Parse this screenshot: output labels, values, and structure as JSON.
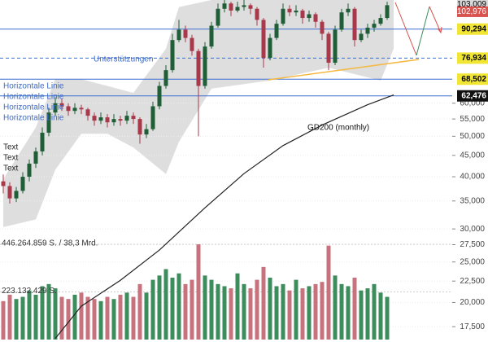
{
  "chart_data": {
    "type": "candlestick",
    "scale": "log",
    "ylim": [
      16300,
      106000
    ],
    "yticks": [
      {
        "value": 17500,
        "label": "17,500"
      },
      {
        "value": 20000,
        "label": "20,000"
      },
      {
        "value": 22500,
        "label": "22,500"
      },
      {
        "value": 25000,
        "label": "25,000"
      },
      {
        "value": 27500,
        "label": "27,500"
      },
      {
        "value": 30000,
        "label": "30,000"
      },
      {
        "value": 35000,
        "label": "35,000"
      },
      {
        "value": 40000,
        "label": "40,000"
      },
      {
        "value": 45000,
        "label": "45,000"
      },
      {
        "value": 50000,
        "label": "50,000"
      },
      {
        "value": 55000,
        "label": "55,000"
      },
      {
        "value": 60000,
        "label": "60,000"
      }
    ],
    "up_color": "#1f5e37",
    "down_color": "#a8384a",
    "candles": [
      [
        39000,
        40500,
        36500,
        38000
      ],
      [
        38000,
        38800,
        34500,
        35500
      ],
      [
        35500,
        37800,
        34800,
        37000
      ],
      [
        37000,
        41000,
        36500,
        40000
      ],
      [
        40000,
        44000,
        39000,
        43000
      ],
      [
        43000,
        47000,
        42000,
        46000
      ],
      [
        46000,
        52500,
        45000,
        51000
      ],
      [
        51000,
        58500,
        50000,
        57000
      ],
      [
        57000,
        62000,
        56000,
        60000
      ],
      [
        60000,
        61500,
        57500,
        59000
      ],
      [
        59000,
        60000,
        56000,
        57500
      ],
      [
        57500,
        60000,
        56500,
        58500
      ],
      [
        58500,
        59500,
        56500,
        58000
      ],
      [
        58000,
        58500,
        54500,
        56000
      ],
      [
        56000,
        57000,
        53000,
        54500
      ],
      [
        54500,
        57000,
        53500,
        55500
      ],
      [
        55500,
        56500,
        52500,
        54000
      ],
      [
        54000,
        56500,
        53000,
        55000
      ],
      [
        55000,
        56000,
        53000,
        54500
      ],
      [
        54500,
        57500,
        53500,
        56000
      ],
      [
        56000,
        57000,
        53500,
        55000
      ],
      [
        55000,
        55500,
        48000,
        50500
      ],
      [
        50500,
        53500,
        49500,
        52000
      ],
      [
        52000,
        60500,
        51500,
        59000
      ],
      [
        59000,
        67500,
        58000,
        66000
      ],
      [
        66000,
        74000,
        65000,
        72000
      ],
      [
        72000,
        88000,
        71000,
        85000
      ],
      [
        85000,
        95000,
        84000,
        90000
      ],
      [
        90000,
        92000,
        84000,
        86000
      ],
      [
        86000,
        87500,
        78000,
        80000
      ],
      [
        80000,
        81000,
        50000,
        66000
      ],
      [
        66000,
        84000,
        65000,
        82000
      ],
      [
        82000,
        94000,
        81000,
        92000
      ],
      [
        92000,
        104000,
        91000,
        101000
      ],
      [
        101000,
        106000,
        99000,
        104000
      ],
      [
        104000,
        105000,
        97000,
        100000
      ],
      [
        100000,
        105000,
        99000,
        102000
      ],
      [
        102000,
        106000,
        100000,
        103000
      ],
      [
        103000,
        104000,
        98000,
        101000
      ],
      [
        101000,
        102000,
        92000,
        95000
      ],
      [
        95000,
        96000,
        73000,
        77000
      ],
      [
        77000,
        88000,
        76000,
        86000
      ],
      [
        86000,
        95000,
        85000,
        93000
      ],
      [
        93000,
        104000,
        92000,
        101000
      ],
      [
        101000,
        103000,
        97000,
        99000
      ],
      [
        99000,
        103000,
        97000,
        100000
      ],
      [
        100000,
        101000,
        93000,
        96000
      ],
      [
        96000,
        100000,
        94000,
        98000
      ],
      [
        98000,
        99000,
        91000,
        94000
      ],
      [
        94000,
        95000,
        85000,
        88000
      ],
      [
        88000,
        89000,
        72000,
        75000
      ],
      [
        75000,
        92000,
        74000,
        90000
      ],
      [
        90000,
        101000,
        89000,
        99000
      ],
      [
        99000,
        104000,
        97000,
        101000
      ],
      [
        101000,
        102000,
        82000,
        85000
      ],
      [
        85000,
        90000,
        84000,
        88000
      ],
      [
        88000,
        93000,
        86000,
        91000
      ],
      [
        91000,
        95000,
        89000,
        93000
      ],
      [
        93000,
        98000,
        92000,
        96000
      ],
      [
        96000,
        105000,
        95000,
        103000
      ]
    ],
    "volume": {
      "ylim": [
        0,
        446264859
      ],
      "ticks": [
        {
          "value": 446264859,
          "label": "446.264.859 S. / 38,3 Mrd."
        },
        {
          "value": 223132429,
          "label": "223.132.429 S."
        }
      ],
      "up_color": "#3d8c5c",
      "down_color": "#c8727e",
      "values": [
        180000000,
        210000000,
        190000000,
        200000000,
        230000000,
        210000000,
        250000000,
        260000000,
        240000000,
        200000000,
        190000000,
        210000000,
        220000000,
        200000000,
        190000000,
        180000000,
        200000000,
        190000000,
        210000000,
        220000000,
        200000000,
        260000000,
        220000000,
        280000000,
        300000000,
        330000000,
        290000000,
        310000000,
        260000000,
        280000000,
        446000000,
        300000000,
        280000000,
        260000000,
        250000000,
        240000000,
        310000000,
        260000000,
        240000000,
        280000000,
        340000000,
        290000000,
        250000000,
        260000000,
        230000000,
        280000000,
        240000000,
        250000000,
        260000000,
        270000000,
        440000000,
        300000000,
        260000000,
        250000000,
        290000000,
        230000000,
        240000000,
        260000000,
        220000000,
        200000000
      ]
    },
    "band": {
      "color": "#dedede",
      "x": [
        0,
        5,
        8,
        12,
        16,
        20,
        25,
        27,
        32,
        41,
        50,
        58,
        60
      ],
      "upper": [
        39500,
        52500,
        68500,
        68500,
        66000,
        63500,
        81000,
        102000,
        106000,
        106000,
        106000,
        106000,
        106000
      ],
      "lower": [
        30300,
        31600,
        41600,
        50700,
        50700,
        47000,
        40600,
        48500,
        65000,
        68000,
        73000,
        68000,
        81000
      ]
    },
    "gd200": {
      "name": "GD200 (monthly)",
      "color": "#222222",
      "x": [
        8,
        12,
        18,
        24,
        31,
        37,
        43,
        49,
        56,
        60
      ],
      "values": [
        16400,
        19600,
        22600,
        26700,
        33700,
        40700,
        47500,
        53200,
        59500,
        62800
      ]
    },
    "levels": [
      {
        "value": 90294,
        "label": "90,294",
        "style": "solid",
        "box_color": "#f2e635",
        "text_color": "#000000"
      },
      {
        "value": 76934,
        "label": "76,934",
        "style": "dashed",
        "box_color": "#f2e635",
        "text_color": "#000000"
      },
      {
        "value": 68502,
        "label": "68,502",
        "style": "solid",
        "box_color": "#f2e635",
        "text_color": "#000000"
      },
      {
        "value": 62476,
        "label": "62,476",
        "style": "solid",
        "box_color": "#111111",
        "text_color": "#ffffff"
      }
    ],
    "level_color": "#3d6fd1",
    "price_markers": [
      {
        "value": 103009,
        "label": "103,009",
        "box_color": "#d9d9d9",
        "text_color": "#000000"
      },
      {
        "value": 102976,
        "label": "102,976",
        "box_color": "#d9534f",
        "text_color": "#ffffff"
      }
    ],
    "annotations": [
      "Unterstützungen",
      "Horizontale Linie",
      "Horizontale Linie",
      "Horizontale Linie",
      "Horizontale Linie",
      "Text",
      "Text",
      "Text"
    ]
  }
}
